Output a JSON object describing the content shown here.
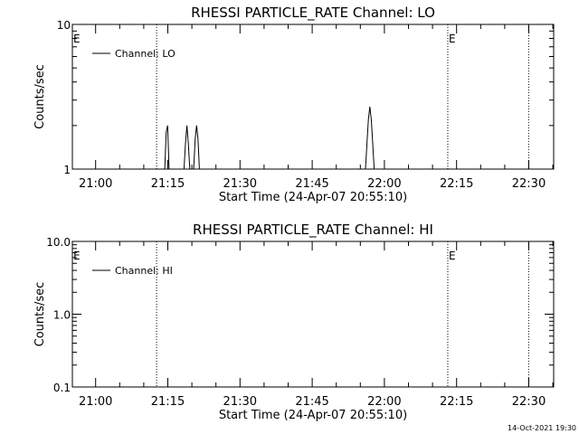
{
  "chart_data": [
    {
      "type": "line",
      "title": "RHESSI PARTICLE_RATE Channel: LO",
      "xlabel": "Start Time (24-Apr-07 20:55:10)",
      "ylabel": "Counts/sec",
      "y_scale": "log",
      "ylim": [
        1,
        10
      ],
      "y_ticks": [
        {
          "value": 1,
          "label": "1"
        },
        {
          "value": 10,
          "label": "10"
        }
      ],
      "xlim_minutes": [
        0,
        100
      ],
      "x_ticks": [
        {
          "minute": 4.83,
          "label": "21:00"
        },
        {
          "minute": 19.83,
          "label": "21:15"
        },
        {
          "minute": 34.83,
          "label": "21:30"
        },
        {
          "minute": 49.83,
          "label": "21:45"
        },
        {
          "minute": 64.83,
          "label": "22:00"
        },
        {
          "minute": 79.83,
          "label": "22:15"
        },
        {
          "minute": 94.83,
          "label": "22:30"
        }
      ],
      "legend": {
        "position": "top-left",
        "label": "Channel: LO"
      },
      "marker_lines": [
        {
          "minute": 17.5,
          "label": ""
        },
        {
          "minute": 78.0,
          "label": "E"
        },
        {
          "minute": 94.8,
          "label": ""
        }
      ],
      "left_marker_label": "E",
      "series": [
        {
          "name": "Channel: LO",
          "x": [
            0,
            19.2,
            19.5,
            19.8,
            20.1,
            23.2,
            23.5,
            23.8,
            24.1,
            24.4,
            25.2,
            25.5,
            25.8,
            26.1,
            26.4,
            60.9,
            61.2,
            61.5,
            61.8,
            62.1,
            62.4,
            62.7,
            100
          ],
          "y": [
            1,
            1,
            1.8,
            2.0,
            1,
            1,
            1.5,
            2.0,
            1.5,
            1,
            1,
            1.6,
            2.0,
            1.6,
            1,
            1,
            1.5,
            2.2,
            2.7,
            2.2,
            1.5,
            1,
            1
          ]
        }
      ]
    },
    {
      "type": "line",
      "title": "RHESSI PARTICLE_RATE Channel: HI",
      "xlabel": "Start Time (24-Apr-07 20:55:10)",
      "ylabel": "Counts/sec",
      "y_scale": "log",
      "ylim": [
        0.1,
        10
      ],
      "y_ticks": [
        {
          "value": 0.1,
          "label": "0.1"
        },
        {
          "value": 1,
          "label": "1.0"
        },
        {
          "value": 10,
          "label": "10.0"
        }
      ],
      "xlim_minutes": [
        0,
        100
      ],
      "x_ticks": [
        {
          "minute": 4.83,
          "label": "21:00"
        },
        {
          "minute": 19.83,
          "label": "21:15"
        },
        {
          "minute": 34.83,
          "label": "21:30"
        },
        {
          "minute": 49.83,
          "label": "21:45"
        },
        {
          "minute": 64.83,
          "label": "22:00"
        },
        {
          "minute": 79.83,
          "label": "22:15"
        },
        {
          "minute": 94.83,
          "label": "22:30"
        }
      ],
      "legend": {
        "position": "top-left",
        "label": "Channel: HI"
      },
      "marker_lines": [
        {
          "minute": 17.5,
          "label": ""
        },
        {
          "minute": 78.0,
          "label": "E"
        },
        {
          "minute": 94.8,
          "label": ""
        }
      ],
      "left_marker_label": "E",
      "series": [
        {
          "name": "Channel: HI",
          "x": [],
          "y": []
        }
      ]
    }
  ],
  "footer_timestamp": "14-Oct-2021 19:30"
}
